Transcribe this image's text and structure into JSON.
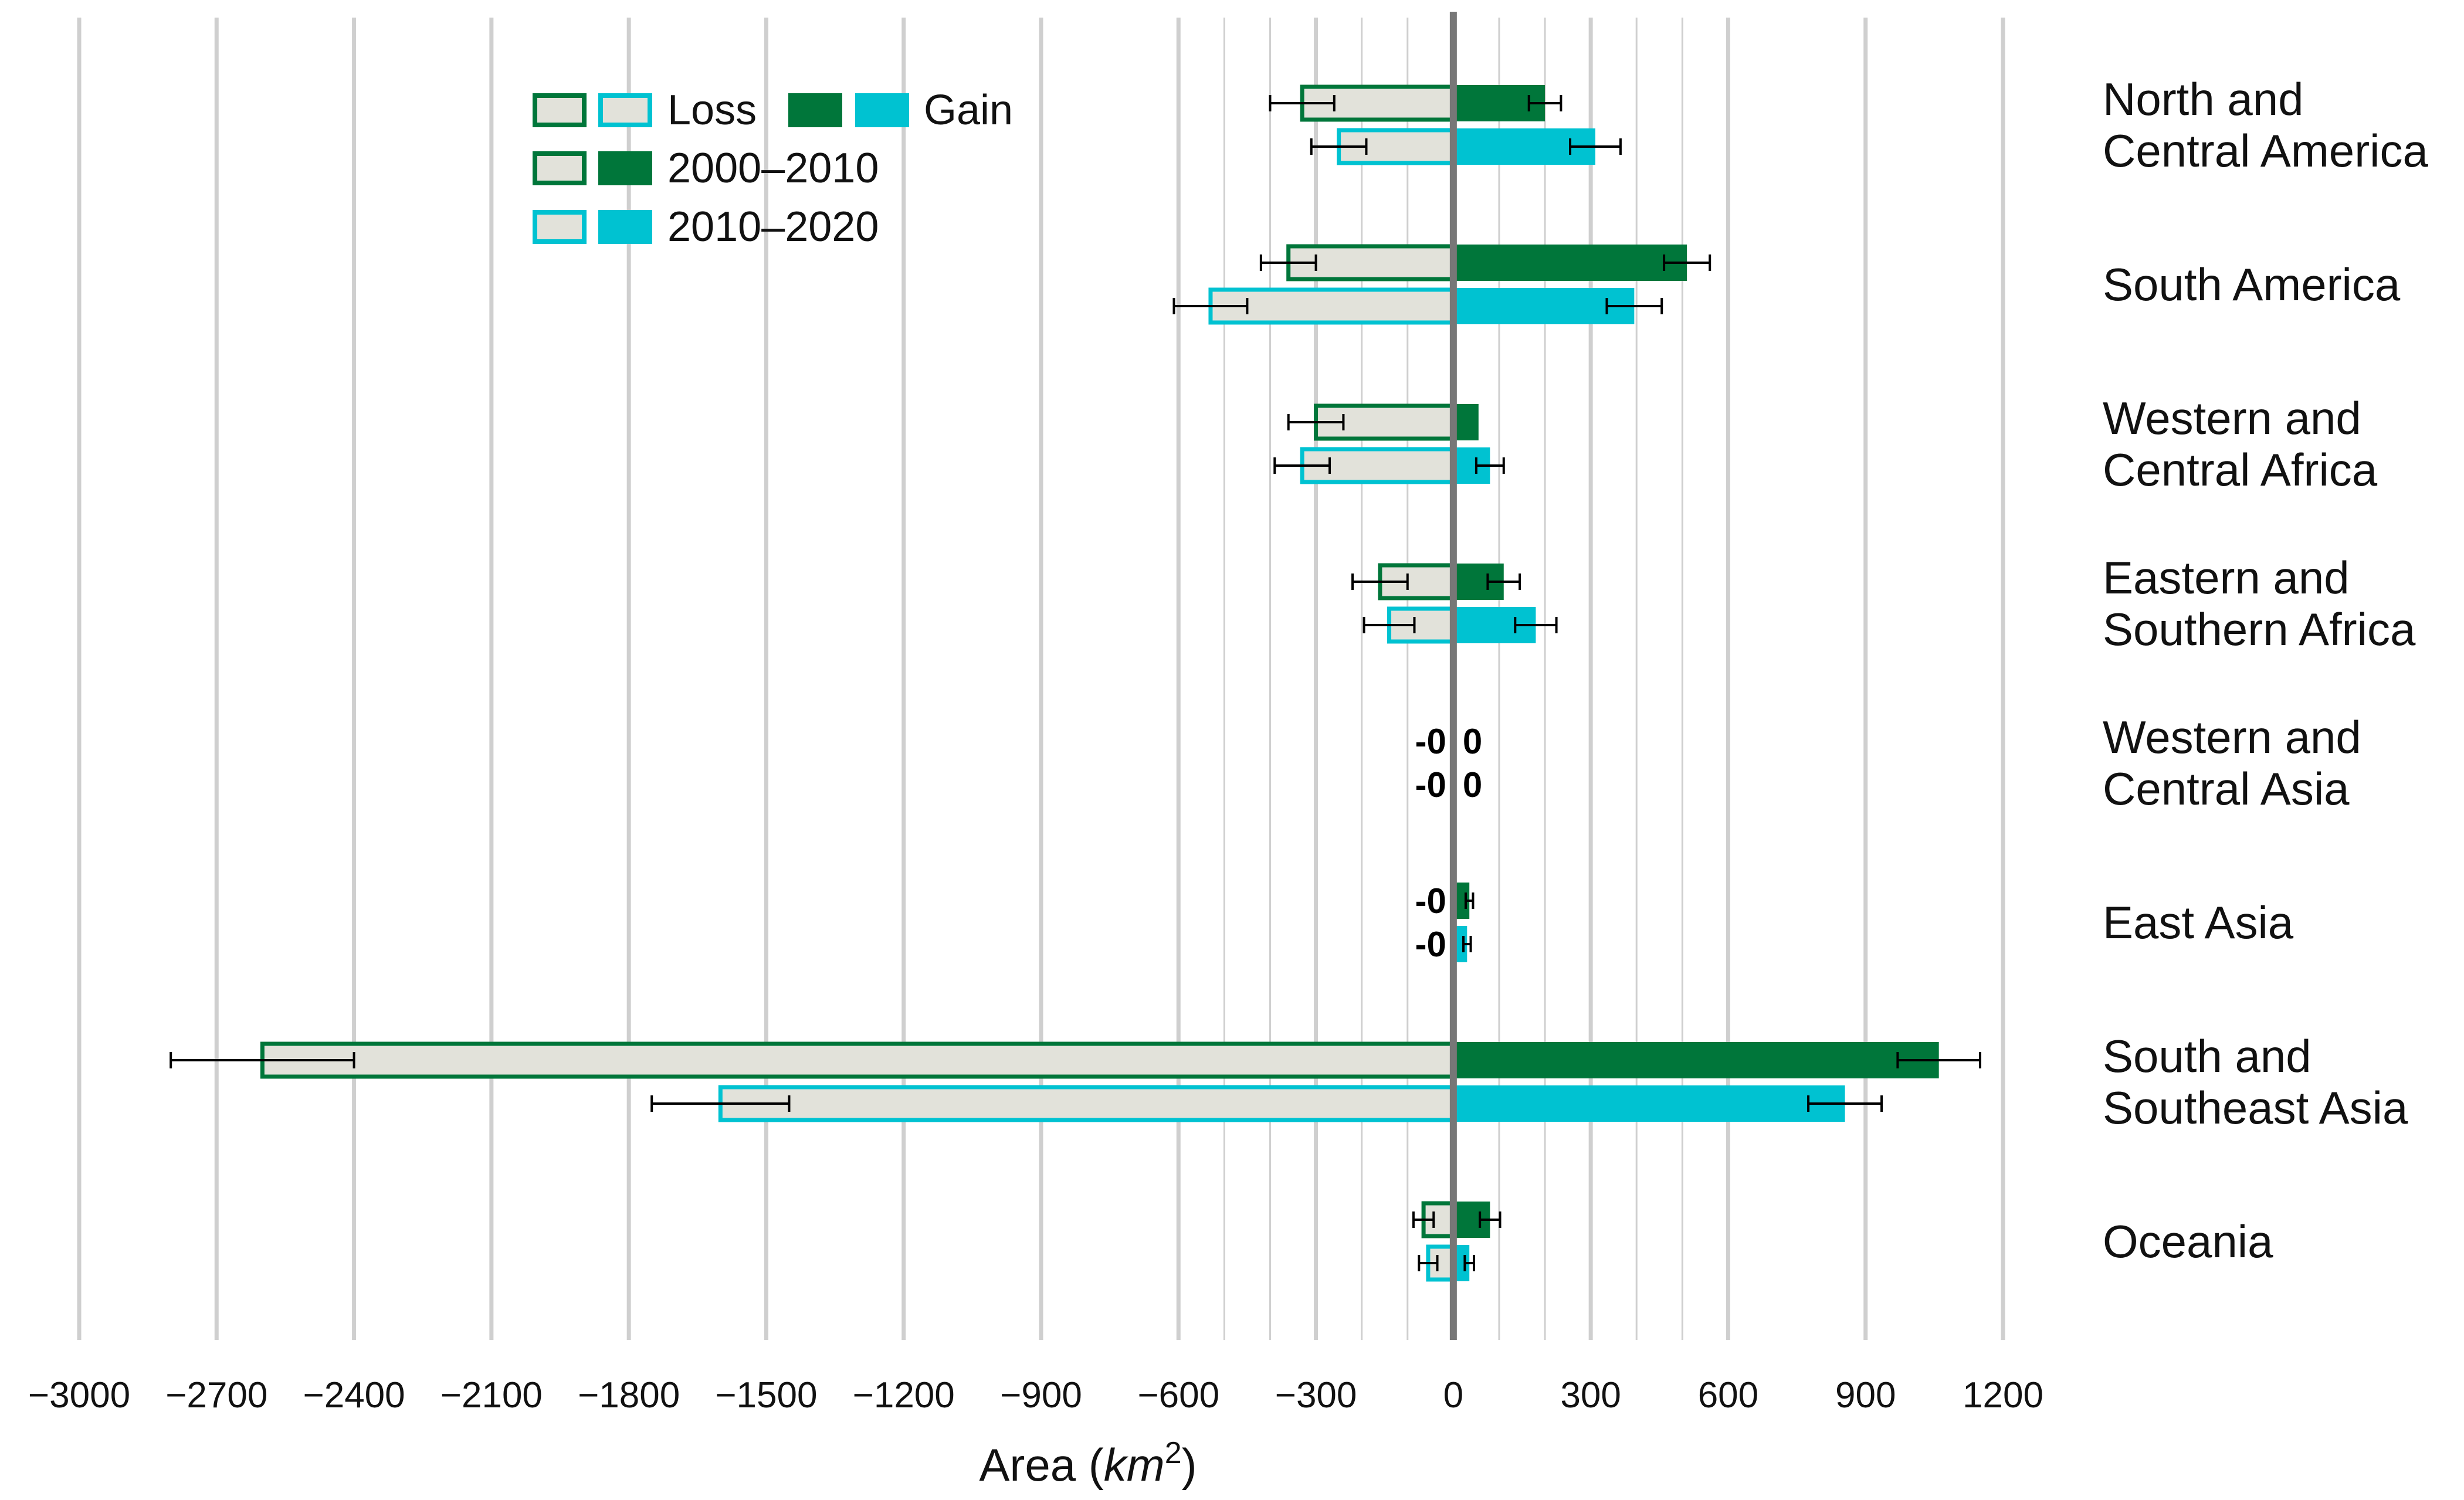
{
  "chart_data": {
    "type": "bar",
    "orientation": "horizontal",
    "xlabel": "Area (km²)",
    "xlabel_parts": {
      "prefix": "Area (",
      "unit": "km",
      "exponent": "2",
      "suffix": ")"
    },
    "xlim": [
      -3000,
      1200
    ],
    "xticks": [
      -3000,
      -2700,
      -2400,
      -2100,
      -1800,
      -1500,
      -1200,
      -900,
      -600,
      -300,
      0,
      300,
      600,
      900,
      1200
    ],
    "xtick_labels": [
      "−3000",
      "−2700",
      "−2400",
      "−2100",
      "−1800",
      "−1500",
      "−1200",
      "−900",
      "−600",
      "−300",
      "0",
      "300",
      "600",
      "900",
      "1200"
    ],
    "grid": "vertical",
    "legend": {
      "placement": "top-left",
      "loss_label": "Loss",
      "gain_label": "Gain",
      "period_1": "2000–2010",
      "period_2": "2010–2020"
    },
    "colors": {
      "period_1": "#00763a",
      "period_2": "#00c2d1",
      "loss_fill": "#e2e2da",
      "zero_line": "#777777",
      "grid": "#cfcfcf"
    },
    "regions": [
      {
        "label_lines": [
          "North and",
          "Central America"
        ],
        "bars": [
          {
            "period": "2000–2010",
            "loss": -330,
            "loss_err": 70,
            "gain": 200,
            "gain_err": 35
          },
          {
            "period": "2010–2020",
            "loss": -250,
            "loss_err": 60,
            "gain": 310,
            "gain_err": 55
          }
        ]
      },
      {
        "label_lines": [
          "South America"
        ],
        "bars": [
          {
            "period": "2000–2010",
            "loss": -360,
            "loss_err": 60,
            "gain": 510,
            "gain_err": 50
          },
          {
            "period": "2010–2020",
            "loss": -530,
            "loss_err": 80,
            "gain": 395,
            "gain_err": 60
          }
        ]
      },
      {
        "label_lines": [
          "Western and",
          "Central Africa"
        ],
        "bars": [
          {
            "period": "2000–2010",
            "loss": -300,
            "loss_err": 60,
            "gain": 55,
            "gain_err": 0
          },
          {
            "period": "2010–2020",
            "loss": -330,
            "loss_err": 60,
            "gain": 80,
            "gain_err": 30
          }
        ]
      },
      {
        "label_lines": [
          "Eastern and",
          "Southern Africa"
        ],
        "bars": [
          {
            "period": "2000–2010",
            "loss": -160,
            "loss_err": 60,
            "gain": 110,
            "gain_err": 35
          },
          {
            "period": "2010–2020",
            "loss": -140,
            "loss_err": 55,
            "gain": 180,
            "gain_err": 45
          }
        ]
      },
      {
        "label_lines": [
          "Western and",
          "Central Asia"
        ],
        "bars": [
          {
            "period": "2000–2010",
            "loss": 0,
            "loss_err": 0,
            "gain": 0,
            "gain_err": 0,
            "loss_text": "-0",
            "gain_text": "0"
          },
          {
            "period": "2010–2020",
            "loss": 0,
            "loss_err": 0,
            "gain": 0,
            "gain_err": 0,
            "loss_text": "-0",
            "gain_text": "0"
          }
        ]
      },
      {
        "label_lines": [
          "East Asia"
        ],
        "bars": [
          {
            "period": "2000–2010",
            "loss": 0,
            "loss_err": 0,
            "gain": 35,
            "gain_err": 8,
            "loss_text": "-0"
          },
          {
            "period": "2010–2020",
            "loss": 0,
            "loss_err": 0,
            "gain": 30,
            "gain_err": 8,
            "loss_text": "-0"
          }
        ]
      },
      {
        "label_lines": [
          "South and",
          "Southeast Asia"
        ],
        "bars": [
          {
            "period": "2000–2010",
            "loss": -2600,
            "loss_err": 200,
            "gain": 1060,
            "gain_err": 90
          },
          {
            "period": "2010–2020",
            "loss": -1600,
            "loss_err": 150,
            "gain": 855,
            "gain_err": 80
          }
        ]
      },
      {
        "label_lines": [
          "Oceania"
        ],
        "bars": [
          {
            "period": "2000–2010",
            "loss": -65,
            "loss_err": 22,
            "gain": 80,
            "gain_err": 22
          },
          {
            "period": "2010–2020",
            "loss": -55,
            "loss_err": 20,
            "gain": 35,
            "gain_err": 10
          }
        ]
      }
    ]
  }
}
